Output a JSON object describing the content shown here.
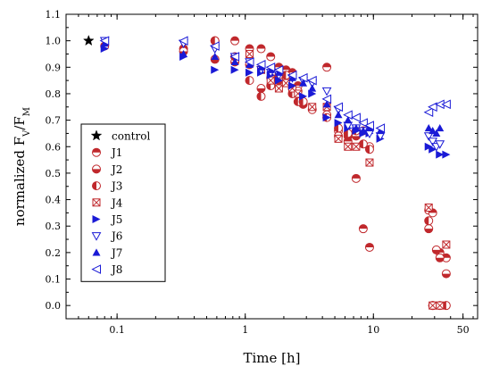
{
  "chart_data": {
    "type": "scatter",
    "xscale": "log",
    "xlim": [
      0.04,
      65
    ],
    "ylim": [
      -0.05,
      1.1
    ],
    "xlabel": "Time [h]",
    "ylabel_main": "normalized F",
    "ylabel_sub1": "V",
    "ylabel_sep": "/F",
    "ylabel_sub2": "M",
    "xticks": [
      0.1,
      1,
      10,
      50
    ],
    "xtick_labels": [
      "0.1",
      "1",
      "10",
      "50"
    ],
    "yticks": [
      0.0,
      0.1,
      0.2,
      0.3,
      0.4,
      0.5,
      0.6,
      0.7,
      0.8,
      0.9,
      1.0,
      1.1
    ],
    "ytick_labels": [
      "0.0",
      "0.1",
      "0.2",
      "0.3",
      "0.4",
      "0.5",
      "0.6",
      "0.7",
      "0.8",
      "0.9",
      "1.0",
      "1.1"
    ],
    "legend_position": "lower-left",
    "series": [
      {
        "name": "control",
        "marker": "star",
        "color": "#000000",
        "points": [
          [
            0.06,
            1.0
          ]
        ]
      },
      {
        "name": "J1",
        "marker": "circle-half-top",
        "color": "#c0282c",
        "points": [
          [
            0.08,
            0.98
          ],
          [
            0.33,
            0.97
          ],
          [
            0.58,
            1.0
          ],
          [
            0.83,
            1.0
          ],
          [
            1.08,
            0.97
          ],
          [
            1.33,
            0.97
          ],
          [
            1.58,
            0.94
          ],
          [
            1.83,
            0.9
          ],
          [
            2.08,
            0.89
          ],
          [
            2.33,
            0.88
          ],
          [
            2.58,
            0.83
          ],
          [
            2.83,
            0.77
          ],
          [
            3.33,
            0.74
          ],
          [
            4.33,
            0.9
          ],
          [
            5.33,
            0.66
          ],
          [
            6.33,
            0.62
          ],
          [
            7.33,
            0.48
          ],
          [
            8.33,
            0.29
          ],
          [
            9.33,
            0.22
          ],
          [
            27.0,
            0.36
          ],
          [
            29.0,
            0.35
          ],
          [
            33.0,
            0.2
          ],
          [
            37.0,
            0.18
          ]
        ]
      },
      {
        "name": "J2",
        "marker": "circle-half-bottom",
        "color": "#c0282c",
        "points": [
          [
            0.33,
            0.96
          ],
          [
            0.58,
            0.93
          ],
          [
            0.83,
            0.92
          ],
          [
            1.08,
            0.91
          ],
          [
            1.33,
            0.82
          ],
          [
            1.58,
            0.86
          ],
          [
            1.83,
            0.85
          ],
          [
            2.08,
            0.85
          ],
          [
            2.33,
            0.82
          ],
          [
            2.58,
            0.81
          ],
          [
            2.83,
            0.76
          ],
          [
            4.33,
            0.72
          ],
          [
            5.33,
            0.64
          ],
          [
            6.33,
            0.64
          ],
          [
            7.33,
            0.64
          ],
          [
            8.33,
            0.66
          ],
          [
            9.33,
            0.6
          ],
          [
            27.0,
            0.29
          ],
          [
            29.0,
            0.0
          ],
          [
            31.0,
            0.21
          ],
          [
            33.0,
            0.18
          ],
          [
            37.0,
            0.12
          ]
        ]
      },
      {
        "name": "J3",
        "marker": "circle-half-left",
        "color": "#c0282c",
        "points": [
          [
            0.58,
            1.0
          ],
          [
            0.83,
            0.94
          ],
          [
            1.08,
            0.85
          ],
          [
            1.33,
            0.79
          ],
          [
            1.58,
            0.83
          ],
          [
            1.83,
            0.87
          ],
          [
            2.08,
            0.87
          ],
          [
            2.33,
            0.8
          ],
          [
            2.58,
            0.77
          ],
          [
            2.83,
            0.77
          ],
          [
            4.33,
            0.71
          ],
          [
            5.33,
            0.67
          ],
          [
            6.33,
            0.65
          ],
          [
            7.33,
            0.66
          ],
          [
            8.33,
            0.61
          ],
          [
            9.33,
            0.59
          ],
          [
            27.0,
            0.32
          ],
          [
            29.0,
            0.0
          ],
          [
            33.0,
            0.0
          ],
          [
            37.0,
            0.0
          ]
        ]
      },
      {
        "name": "J4",
        "marker": "square-x",
        "color": "#c0282c",
        "points": [
          [
            1.08,
            0.95
          ],
          [
            1.33,
            0.89
          ],
          [
            1.58,
            0.85
          ],
          [
            1.83,
            0.82
          ],
          [
            2.08,
            0.84
          ],
          [
            2.33,
            0.82
          ],
          [
            2.58,
            0.8
          ],
          [
            3.33,
            0.75
          ],
          [
            4.33,
            0.75
          ],
          [
            5.33,
            0.63
          ],
          [
            6.33,
            0.6
          ],
          [
            7.33,
            0.6
          ],
          [
            9.33,
            0.54
          ],
          [
            27.0,
            0.37
          ],
          [
            29.0,
            0.0
          ],
          [
            33.0,
            0.0
          ],
          [
            37.0,
            0.23
          ]
        ]
      },
      {
        "name": "J5",
        "marker": "triangle-right",
        "color": "#1a1ad6",
        "points": [
          [
            0.08,
            0.97
          ],
          [
            0.33,
            0.94
          ],
          [
            0.58,
            0.89
          ],
          [
            0.83,
            0.89
          ],
          [
            1.08,
            0.88
          ],
          [
            1.33,
            0.88
          ],
          [
            1.58,
            0.87
          ],
          [
            1.83,
            0.85
          ],
          [
            2.33,
            0.83
          ],
          [
            2.83,
            0.79
          ],
          [
            3.33,
            0.8
          ],
          [
            4.33,
            0.71
          ],
          [
            5.33,
            0.69
          ],
          [
            6.33,
            0.67
          ],
          [
            7.33,
            0.66
          ],
          [
            8.33,
            0.65
          ],
          [
            9.33,
            0.65
          ],
          [
            11.33,
            0.63
          ],
          [
            27.0,
            0.6
          ],
          [
            29.0,
            0.59
          ],
          [
            33.0,
            0.57
          ],
          [
            37.0,
            0.57
          ]
        ]
      },
      {
        "name": "J6",
        "marker": "triangle-down-open",
        "color": "#1a1ad6",
        "points": [
          [
            0.08,
            1.0
          ],
          [
            0.33,
            0.99
          ],
          [
            0.58,
            0.97
          ],
          [
            0.83,
            0.94
          ],
          [
            1.08,
            0.92
          ],
          [
            1.33,
            0.89
          ],
          [
            1.58,
            0.88
          ],
          [
            1.83,
            0.87
          ],
          [
            2.33,
            0.86
          ],
          [
            2.83,
            0.85
          ],
          [
            3.33,
            0.84
          ],
          [
            4.33,
            0.81
          ],
          [
            5.33,
            0.74
          ],
          [
            6.33,
            0.68
          ],
          [
            7.33,
            0.67
          ],
          [
            8.33,
            0.66
          ],
          [
            9.33,
            0.65
          ],
          [
            11.33,
            0.64
          ],
          [
            27.0,
            0.64
          ],
          [
            29.0,
            0.62
          ],
          [
            31.0,
            0.6
          ],
          [
            33.0,
            0.61
          ]
        ]
      },
      {
        "name": "J7",
        "marker": "triangle-up",
        "color": "#1a1ad6",
        "points": [
          [
            0.08,
            0.99
          ],
          [
            0.33,
            0.95
          ],
          [
            0.58,
            0.94
          ],
          [
            0.83,
            0.92
          ],
          [
            1.08,
            0.91
          ],
          [
            1.33,
            0.9
          ],
          [
            1.58,
            0.89
          ],
          [
            1.83,
            0.88
          ],
          [
            2.33,
            0.86
          ],
          [
            2.83,
            0.84
          ],
          [
            3.33,
            0.82
          ],
          [
            4.33,
            0.76
          ],
          [
            5.33,
            0.72
          ],
          [
            6.33,
            0.7
          ],
          [
            7.33,
            0.67
          ],
          [
            8.33,
            0.66
          ],
          [
            9.33,
            0.67
          ],
          [
            11.33,
            0.66
          ],
          [
            27.0,
            0.67
          ],
          [
            29.0,
            0.66
          ],
          [
            31.0,
            0.65
          ],
          [
            33.0,
            0.67
          ]
        ]
      },
      {
        "name": "J8",
        "marker": "triangle-left-open",
        "color": "#1a1ad6",
        "points": [
          [
            0.08,
            1.0
          ],
          [
            0.33,
            1.0
          ],
          [
            0.58,
            0.98
          ],
          [
            0.83,
            0.94
          ],
          [
            1.08,
            0.92
          ],
          [
            1.33,
            0.91
          ],
          [
            1.58,
            0.9
          ],
          [
            1.83,
            0.89
          ],
          [
            2.33,
            0.87
          ],
          [
            2.83,
            0.86
          ],
          [
            3.33,
            0.85
          ],
          [
            4.33,
            0.78
          ],
          [
            5.33,
            0.75
          ],
          [
            6.33,
            0.72
          ],
          [
            7.33,
            0.71
          ],
          [
            8.33,
            0.69
          ],
          [
            9.33,
            0.68
          ],
          [
            11.33,
            0.67
          ],
          [
            27.0,
            0.73
          ],
          [
            29.0,
            0.75
          ],
          [
            33.0,
            0.76
          ],
          [
            37.0,
            0.76
          ]
        ]
      }
    ]
  }
}
